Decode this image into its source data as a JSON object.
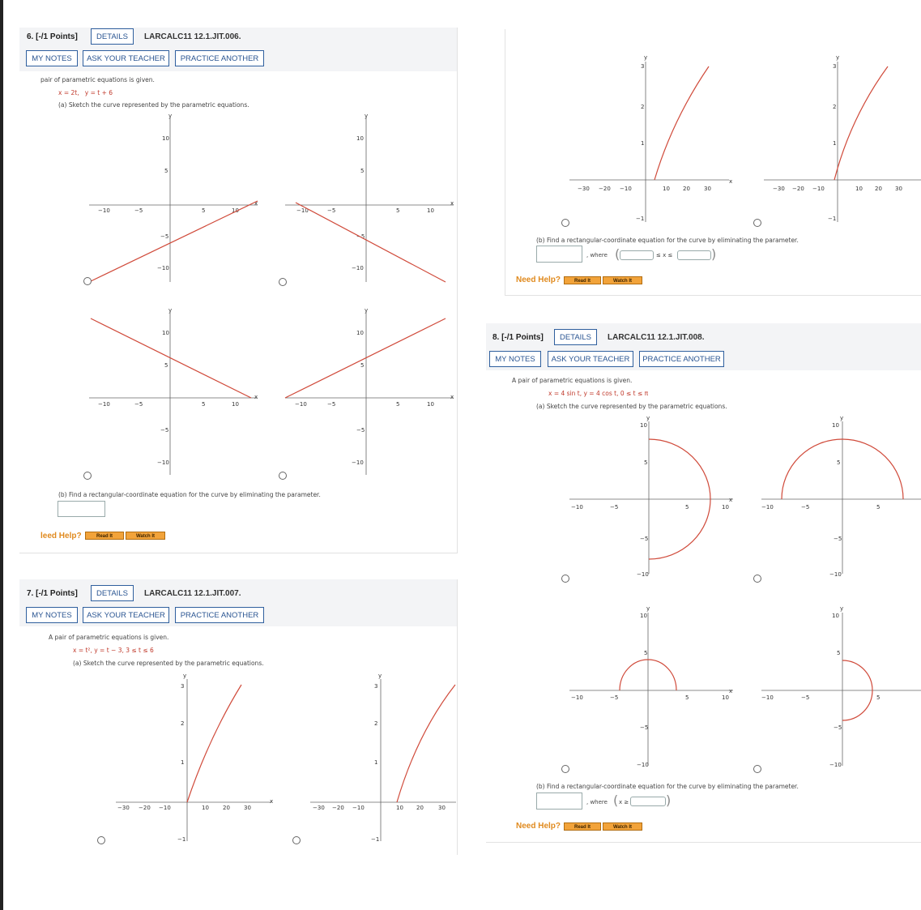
{
  "buttons": {
    "details": "DETAILS",
    "my_notes": "MY NOTES",
    "ask_teacher": "ASK YOUR TEACHER",
    "practice": "PRACTICE ANOTHER",
    "read_it": "Read It",
    "watch_it": "Watch It"
  },
  "need_help": "Need Help?",
  "need_help_cropped": "leed Help?",
  "where_label": ", where",
  "colors": {
    "curve": "#d04a3a",
    "button_border": "#2f5f9e",
    "button_text": "#2a5592",
    "help_orange": "#e08a1e"
  },
  "q6": {
    "points": "6. [-/1 Points]",
    "code": "LARCALC11 12.1.JIT.006.",
    "intro": "pair of parametric equations is given.",
    "eq_x": "x = 2t,",
    "eq_y": "y = t + 6",
    "part_a": "(a) Sketch the curve represented by the parametric equations.",
    "part_b": "(b) Find a rectangular-coordinate equation for the curve by eliminating the parameter.",
    "graph_ticks": {
      "x": [
        "−10",
        "−5",
        "5",
        "10"
      ],
      "y": [
        "10",
        "5",
        "−5",
        "−10"
      ]
    }
  },
  "q7": {
    "points": "7. [-/1 Points]",
    "code": "LARCALC11 12.1.JIT.007.",
    "intro": "A pair of parametric equations is given.",
    "eq": "x = t²,   y = t − 3,   3 ≤ t ≤ 6",
    "part_a": "(a) Sketch the curve represented by the parametric equations.",
    "part_b": "(b) Find a rectangular-coordinate equation for the curve by eliminating the parameter.",
    "interval_symbol": "≤ x ≤",
    "graph_ticks": {
      "x": [
        "−30",
        "−20",
        "−10",
        "10",
        "20",
        "30"
      ],
      "y": [
        "3",
        "2",
        "1",
        "−1"
      ]
    }
  },
  "q8": {
    "points": "8. [-/1 Points]",
    "code": "LARCALC11 12.1.JIT.008.",
    "intro": "A pair of parametric equations is given.",
    "eq": "x = 4 sin t,   y = 4 cos t,   0 ≤ t ≤ π",
    "part_a": "(a) Sketch the curve represented by the parametric equations.",
    "part_b": "(b) Find a rectangular-coordinate equation for the curve by eliminating the parameter.",
    "where_symbol": "x ≥",
    "graph_ticks": {
      "x": [
        "−10",
        "−5",
        "5",
        "10"
      ],
      "y": [
        "10",
        "5",
        "−5",
        "−10"
      ]
    }
  },
  "axis_labels": {
    "x": "x",
    "y": "y"
  }
}
